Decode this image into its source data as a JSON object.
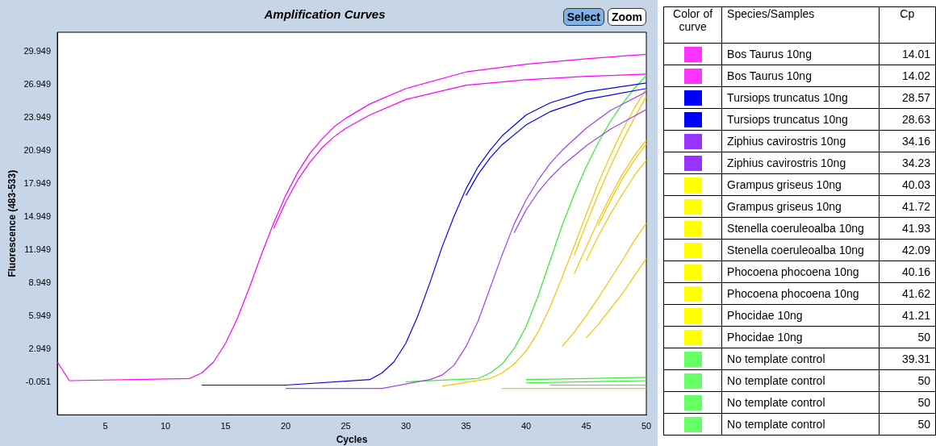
{
  "chart_data": [
    {
      "type": "line",
      "title": "Amplification Curves",
      "xlabel": "Cycles",
      "ylabel": "Fluorescence (483-533)",
      "annotations": [
        "Select",
        "Zoom"
      ],
      "xlim": [
        1,
        50
      ],
      "xticks": [
        5,
        10,
        15,
        20,
        25,
        30,
        35,
        40,
        45,
        50
      ],
      "ylim": [
        -3,
        31.7
      ],
      "yticks": [
        -0.051,
        2.949,
        5.949,
        8.949,
        11.949,
        14.949,
        17.949,
        20.949,
        23.949,
        26.949,
        29.949
      ],
      "grid": false,
      "legend": false,
      "series": [
        {
          "color": "#ff00ff",
          "x": [
            1,
            2,
            12,
            13,
            14,
            15,
            16,
            17,
            18,
            19,
            20,
            21,
            22,
            23,
            24,
            25,
            27,
            30,
            35,
            40,
            45,
            50
          ],
          "values": [
            1.8,
            0.1,
            0.3,
            0.8,
            1.8,
            3.5,
            5.8,
            8.6,
            11.6,
            14.4,
            16.9,
            19,
            20.7,
            22,
            23.1,
            23.9,
            25.2,
            26.6,
            28.1,
            28.8,
            29.3,
            29.7
          ]
        },
        {
          "color": "#ff00ff",
          "x": [
            19,
            20,
            21,
            22,
            23,
            24,
            25,
            27,
            30,
            35,
            40,
            45,
            50
          ],
          "values": [
            13.9,
            16.3,
            18.3,
            19.9,
            21.2,
            22.2,
            23,
            24.2,
            25.6,
            26.9,
            27.4,
            27.7,
            27.9
          ]
        },
        {
          "color": "#0000ff",
          "x": [
            13,
            20,
            27,
            28,
            29,
            30,
            31,
            32,
            33,
            34,
            35,
            36,
            37,
            38,
            40,
            42,
            45,
            50
          ],
          "values": [
            -0.3,
            -0.3,
            0.2,
            0.8,
            1.8,
            3.5,
            6,
            9,
            12.2,
            15,
            17.5,
            19.5,
            21,
            22.3,
            24.2,
            25.3,
            26.3,
            27.1
          ]
        },
        {
          "color": "#0000ff",
          "x": [
            35,
            36,
            37,
            38,
            40,
            42,
            45,
            50
          ],
          "values": [
            16.9,
            18.8,
            20.3,
            21.5,
            23.3,
            24.5,
            25.6,
            26.6
          ]
        },
        {
          "color": "#a040f0",
          "x": [
            20,
            28,
            32,
            33,
            34,
            35,
            36,
            37,
            38,
            39,
            40,
            41,
            42,
            43,
            45,
            47,
            50
          ],
          "values": [
            -0.6,
            -0.6,
            0.2,
            0.6,
            1.5,
            3.2,
            5.5,
            8.5,
            11.5,
            14.3,
            16.5,
            18.3,
            19.8,
            21,
            23,
            24.6,
            26.3
          ]
        },
        {
          "color": "#a040f0",
          "x": [
            39,
            40,
            41,
            42,
            43,
            45,
            47,
            50
          ],
          "values": [
            13.5,
            15.6,
            17.2,
            18.5,
            19.6,
            21.4,
            22.9,
            24.7
          ]
        },
        {
          "color": "#33ee33",
          "x": [
            30,
            36,
            37,
            38,
            39,
            40,
            41,
            42,
            43,
            44,
            45,
            46,
            47,
            48,
            49,
            50
          ],
          "values": [
            0,
            0.3,
            0.8,
            1.6,
            3,
            5,
            7.8,
            11,
            14.2,
            17,
            19.5,
            21.7,
            23.6,
            25.2,
            26.6,
            27.8
          ]
        },
        {
          "color": "#f5c400",
          "x": [
            33,
            37,
            38,
            39,
            40,
            41,
            42,
            43,
            44,
            45,
            46,
            47,
            48,
            49,
            50
          ],
          "values": [
            -0.4,
            0.3,
            0.8,
            1.6,
            2.8,
            4.5,
            6.8,
            9.5,
            12.3,
            15.2,
            18,
            20.5,
            22.8,
            24.8,
            26.6
          ]
        },
        {
          "color": "#f5c400",
          "x": [
            44,
            45,
            46,
            47,
            48,
            49,
            50
          ],
          "values": [
            11.5,
            14.3,
            17,
            19.5,
            21.8,
            23.9,
            25.9
          ]
        },
        {
          "color": "#f5c400",
          "x": [
            44,
            45,
            46,
            47,
            48,
            49,
            50
          ],
          "values": [
            9.8,
            12.2,
            14.6,
            16.8,
            18.8,
            20.5,
            21.9
          ]
        },
        {
          "color": "#f5c400",
          "x": [
            46,
            47,
            48,
            49,
            50
          ],
          "values": [
            14.2,
            16.4,
            18.4,
            20.1,
            21.6
          ]
        },
        {
          "color": "#f5c400",
          "x": [
            45,
            46,
            47,
            48,
            49,
            50
          ],
          "values": [
            11,
            13.2,
            15.2,
            17,
            18.7,
            20.1
          ]
        },
        {
          "color": "#f5c400",
          "x": [
            43,
            44,
            45,
            46,
            47,
            48,
            49,
            50
          ],
          "values": [
            3.2,
            4.5,
            6,
            7.6,
            9.3,
            11,
            12.8,
            14.4
          ]
        },
        {
          "color": "#f5c400",
          "x": [
            45,
            46,
            47,
            48,
            49,
            50
          ],
          "values": [
            4,
            5.2,
            6.6,
            8,
            9.6,
            11.2
          ]
        },
        {
          "color": "#f5c400",
          "x": [
            38,
            50
          ],
          "values": [
            -0.6,
            -0.6
          ]
        },
        {
          "color": "#33ee33",
          "x": [
            40,
            45,
            50
          ],
          "values": [
            0.2,
            0.3,
            0.4
          ]
        },
        {
          "color": "#33ee33",
          "x": [
            40,
            45,
            50
          ],
          "values": [
            -0.1,
            0,
            0.1
          ]
        },
        {
          "color": "#33ee33",
          "x": [
            42,
            50
          ],
          "values": [
            -0.3,
            -0.3
          ]
        }
      ]
    },
    {
      "type": "other",
      "annotations": [
        "Color of curve",
        "Species/Samples",
        "Cp"
      ],
      "data_labels": true,
      "categories": [
        "Bos Taurus 10ng",
        "Bos Taurus 10ng",
        "Tursiops truncatus 10ng",
        "Tursiops truncatus 10ng",
        "Ziphius cavirostris 10ng",
        "Ziphius cavirostris 10ng",
        "Grampus griseus 10ng",
        "Grampus griseus 10ng",
        "Stenella coeruleoalba 10ng",
        "Stenella coeruleoalba 10ng",
        "Phocoena phocoena 10ng",
        "Phocoena phocoena 10ng",
        "Phocidae 10ng",
        "Phocidae 10ng",
        "No template control",
        "No template control",
        "No template control",
        "No template control"
      ],
      "values": [
        14.01,
        14.02,
        28.57,
        28.63,
        34.16,
        34.23,
        40.03,
        41.72,
        41.93,
        42.09,
        40.16,
        41.62,
        41.21,
        50,
        39.31,
        50,
        50,
        50
      ],
      "colors": [
        "#ff33ff",
        "#ff33ff",
        "#0000ff",
        "#0000ff",
        "#9933ff",
        "#9933ff",
        "#ffff00",
        "#ffff00",
        "#ffff00",
        "#ffff00",
        "#ffff00",
        "#ffff00",
        "#ffff00",
        "#ffff00",
        "#66ff66",
        "#66ff66",
        "#66ff66",
        "#66ff66"
      ]
    }
  ]
}
